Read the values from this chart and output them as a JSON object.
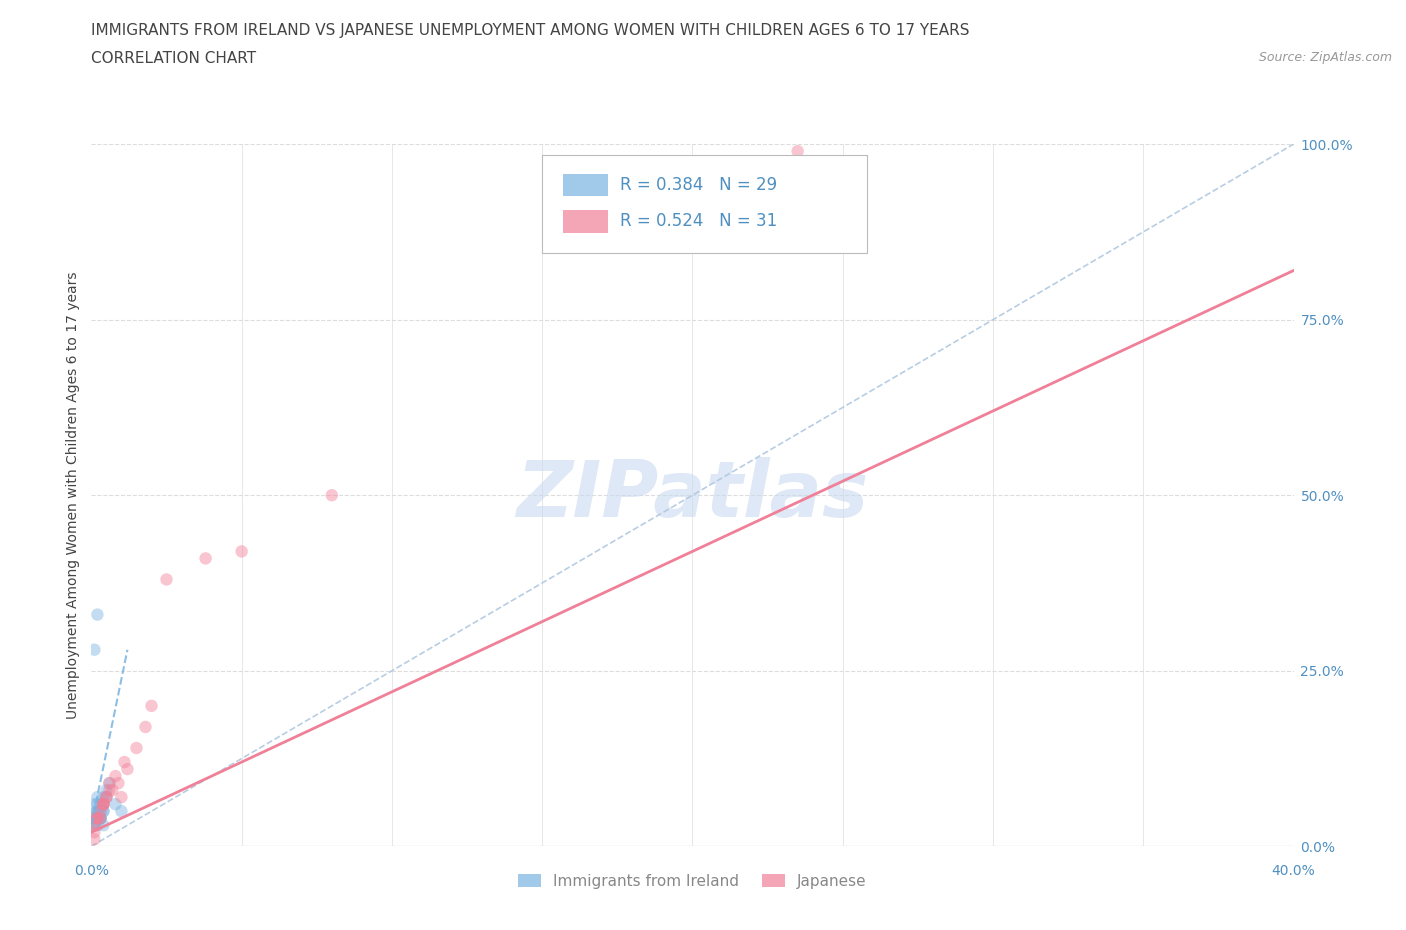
{
  "title": "IMMIGRANTS FROM IRELAND VS JAPANESE UNEMPLOYMENT AMONG WOMEN WITH CHILDREN AGES 6 TO 17 YEARS",
  "subtitle": "CORRELATION CHART",
  "source": "Source: ZipAtlas.com",
  "ylabel": "Unemployment Among Women with Children Ages 6 to 17 years",
  "watermark": "ZIPatlas",
  "legend_items": [
    {
      "label": "R = 0.384   N = 29",
      "color": "#a8c8f0"
    },
    {
      "label": "R = 0.524   N = 31",
      "color": "#f0a8b8"
    }
  ],
  "legend_bottom": [
    {
      "label": "Immigrants from Ireland",
      "color": "#a8c8f0"
    },
    {
      "label": "Japanese",
      "color": "#f0a8b8"
    }
  ],
  "xlim": [
    0,
    0.4
  ],
  "ylim": [
    0,
    1.0
  ],
  "right_ytick_labels": [
    "0.0%",
    "25.0%",
    "50.0%",
    "75.0%",
    "100.0%"
  ],
  "blue_scatter_x": [
    0.001,
    0.002,
    0.001,
    0.003,
    0.002,
    0.004,
    0.003,
    0.002,
    0.001,
    0.003,
    0.002,
    0.001,
    0.004,
    0.003,
    0.002,
    0.005,
    0.003,
    0.004,
    0.002,
    0.001,
    0.006,
    0.005,
    0.003,
    0.004,
    0.001,
    0.002,
    0.008,
    0.01,
    0.004
  ],
  "blue_scatter_y": [
    0.04,
    0.05,
    0.06,
    0.04,
    0.07,
    0.05,
    0.06,
    0.03,
    0.04,
    0.05,
    0.06,
    0.03,
    0.07,
    0.04,
    0.05,
    0.08,
    0.04,
    0.06,
    0.05,
    0.03,
    0.09,
    0.07,
    0.04,
    0.05,
    0.28,
    0.33,
    0.06,
    0.05,
    0.03
  ],
  "pink_scatter_x": [
    0.001,
    0.004,
    0.005,
    0.006,
    0.003,
    0.002,
    0.004,
    0.008,
    0.01,
    0.005,
    0.006,
    0.009,
    0.004,
    0.007,
    0.002,
    0.012,
    0.015,
    0.003,
    0.004,
    0.001,
    0.002,
    0.001,
    0.025,
    0.038,
    0.05,
    0.08,
    0.011,
    0.018,
    0.02,
    0.001,
    0.235
  ],
  "pink_scatter_y": [
    0.04,
    0.06,
    0.07,
    0.09,
    0.05,
    0.04,
    0.06,
    0.1,
    0.07,
    0.07,
    0.08,
    0.09,
    0.06,
    0.08,
    0.04,
    0.11,
    0.14,
    0.04,
    0.06,
    0.03,
    0.04,
    0.02,
    0.38,
    0.41,
    0.42,
    0.5,
    0.12,
    0.17,
    0.2,
    0.01,
    0.99
  ],
  "blue_line_x": [
    0.0,
    0.012
  ],
  "blue_line_y": [
    0.03,
    0.28
  ],
  "pink_line_x": [
    0.0,
    0.4
  ],
  "pink_line_y": [
    0.02,
    0.82
  ],
  "ref_line_x": [
    0.0,
    0.4
  ],
  "ref_line_y": [
    0.0,
    1.0
  ],
  "title_fontsize": 11,
  "subtitle_fontsize": 11,
  "axis_label_fontsize": 10,
  "tick_fontsize": 10,
  "scatter_size": 80,
  "scatter_alpha": 0.45,
  "background_color": "#ffffff",
  "grid_color": "#dddddd",
  "blue_color": "#7ab3e0",
  "pink_color": "#f08098",
  "ref_line_color": "#b0c8e0",
  "blue_label_color": "#5090c0",
  "watermark_color": "#c8daf0"
}
